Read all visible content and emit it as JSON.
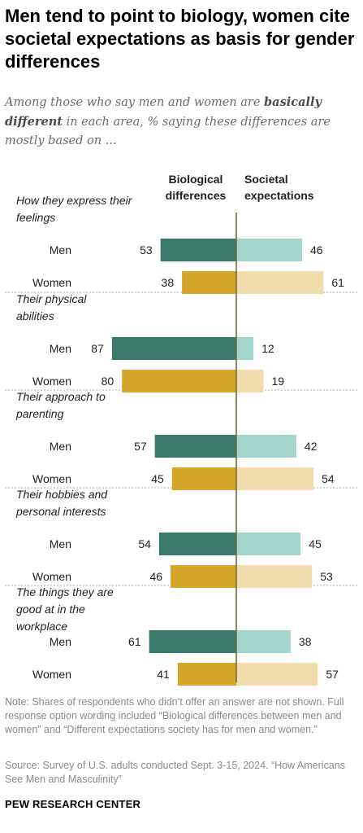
{
  "title": "Men tend to point to biology, women cite societal expectations as basis for gender differences",
  "subtitle": {
    "part1": "Among those who say men and women are ",
    "emphasis": "basically different",
    "part2": " in each area, % saying these differences are mostly based on ..."
  },
  "note": "Note: Shares of respondents who didn’t offer an answer are not shown. Full response option wording included “Biological differences between men and women” and “Different expectations society has for men and women.”",
  "source": "Source: Survey of U.S. adults conducted Sept. 3-15, 2024. “How Americans See Men and Masculinity”",
  "brand": "PEW RESEARCH CENTER",
  "chart_data": {
    "type": "bar",
    "orientation": "diverging-horizontal",
    "series": [
      {
        "name": "Biological differences",
        "side": "left"
      },
      {
        "name": "Societal expectations",
        "side": "right"
      }
    ],
    "colors": {
      "men_biological": "#3a7a6a",
      "men_societal": "#a4d5cd",
      "women_biological": "#d3a62a",
      "women_societal": "#efdcaa",
      "axis": "#6f6a3a"
    },
    "groups": [
      {
        "label": "How they express their feelings",
        "rows": [
          {
            "label": "Men",
            "biological": 53,
            "societal": 46
          },
          {
            "label": "Women",
            "biological": 38,
            "societal": 61
          }
        ]
      },
      {
        "label": "Their physical abilities",
        "rows": [
          {
            "label": "Men",
            "biological": 87,
            "societal": 12
          },
          {
            "label": "Women",
            "biological": 80,
            "societal": 19
          }
        ]
      },
      {
        "label": "Their approach to parenting",
        "rows": [
          {
            "label": "Men",
            "biological": 57,
            "societal": 42
          },
          {
            "label": "Women",
            "biological": 45,
            "societal": 54
          }
        ]
      },
      {
        "label": "Their hobbies and personal interests",
        "rows": [
          {
            "label": "Men",
            "biological": 54,
            "societal": 45
          },
          {
            "label": "Women",
            "biological": 46,
            "societal": 53
          }
        ]
      },
      {
        "label": "The things they are good at in the workplace",
        "rows": [
          {
            "label": "Men",
            "biological": 61,
            "societal": 38
          },
          {
            "label": "Women",
            "biological": 41,
            "societal": 57
          }
        ]
      }
    ]
  }
}
